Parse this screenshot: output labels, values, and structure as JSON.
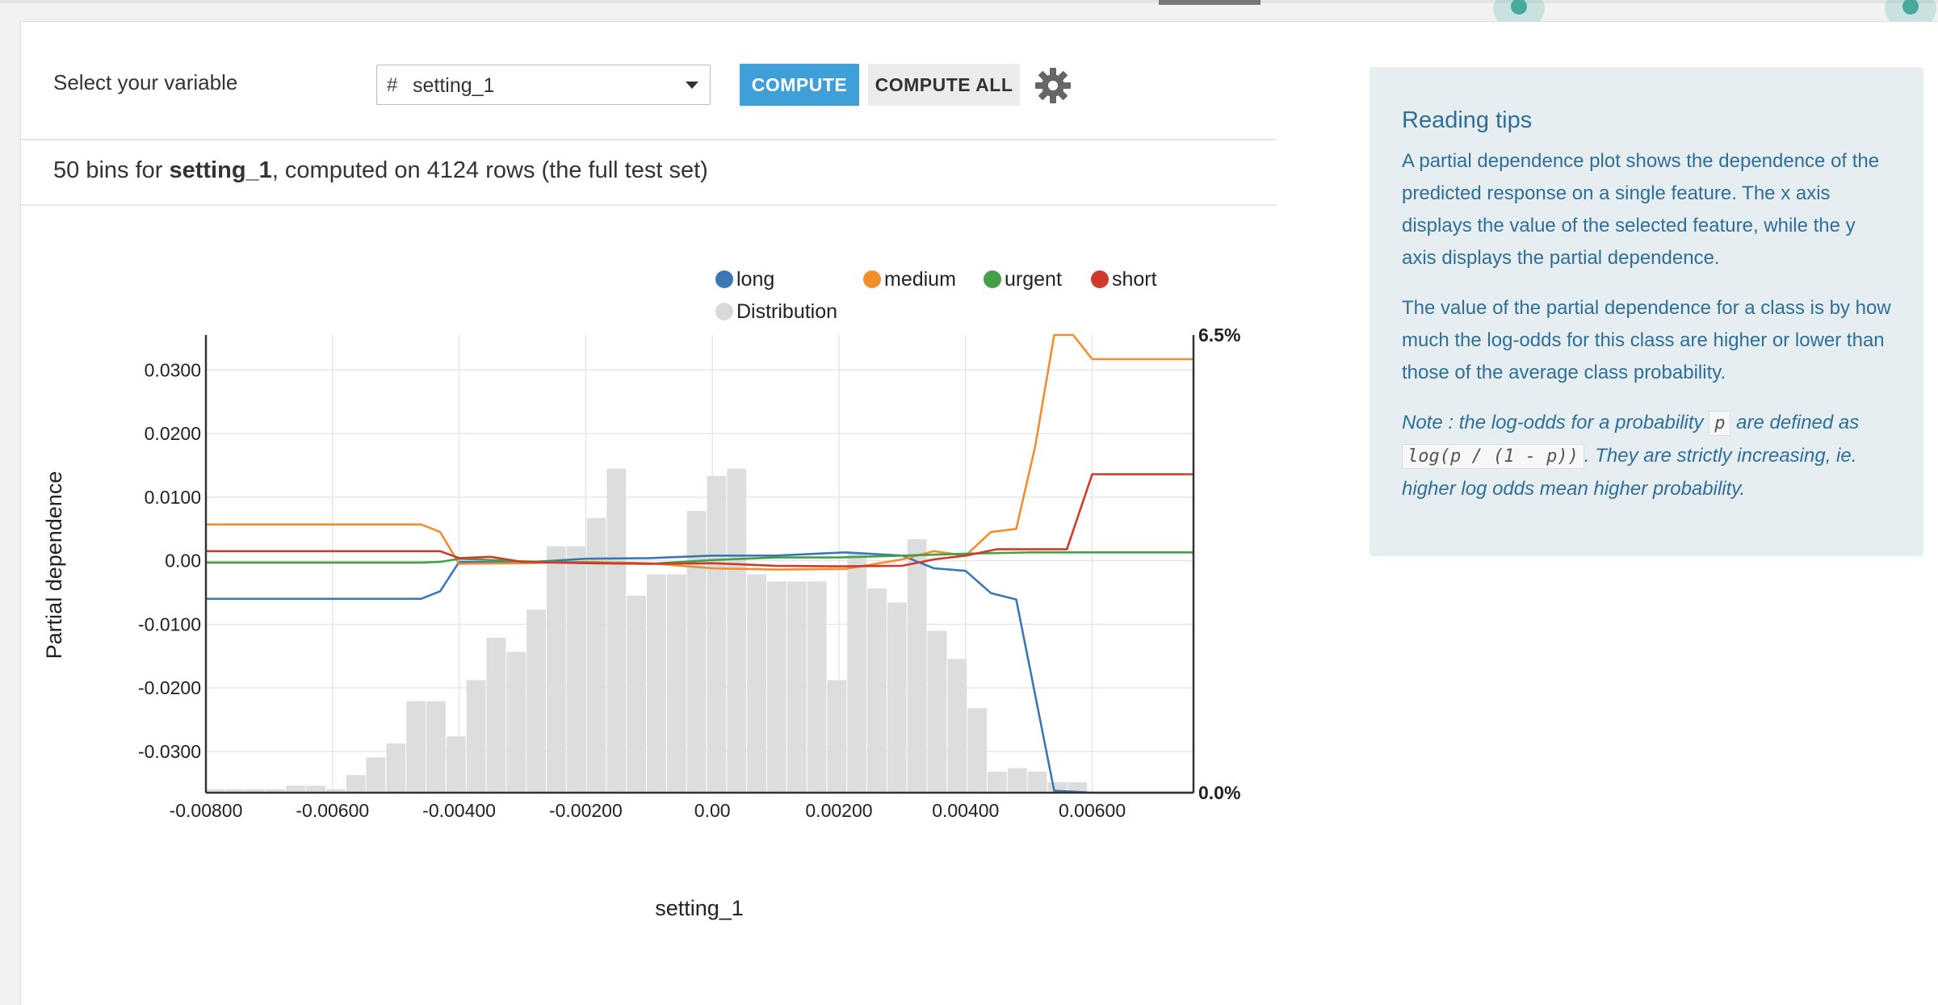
{
  "toolbar": {
    "variable_label": "Select your variable",
    "variable_type_symbol": "#",
    "selected_variable": "setting_1",
    "compute_label": "COMPUTE",
    "compute_all_label": "COMPUTE ALL",
    "settings_icon": "gear-icon"
  },
  "summary": {
    "prefix": "50 bins for ",
    "variable": "setting_1",
    "suffix": ", computed on 4124 rows (the full test set)"
  },
  "tips": {
    "title": "Reading tips",
    "p1": "A partial dependence plot shows the dependence of the predicted response on a single feature. The x axis displays the value of the selected feature, while the y axis displays the partial dependence.",
    "p2": "The value of the partial dependence for a class is by how much the log-odds for this class are higher or lower than those of the average class probability.",
    "note_a": "Note : the log-odds for a probability ",
    "note_var": "p",
    "note_b": " are defined as ",
    "note_formula": "log(p / (1 - p))",
    "note_c": ". They are strictly increasing, ie. higher log odds mean higher probability."
  },
  "colors": {
    "accent": "#3f9fd9",
    "tips_text": "#2f6f97",
    "tips_bg": "#e6eef2"
  },
  "chart_data": {
    "type": "line",
    "xlabel": "setting_1",
    "ylabel": "Partial dependence",
    "xlim": [
      -0.008,
      0.0076
    ],
    "ylim": [
      -0.0365,
      0.0355
    ],
    "x_ticks": [
      "-0.00800",
      "-0.00600",
      "-0.00400",
      "-0.00200",
      "0.00",
      "0.00200",
      "0.00400",
      "0.00600"
    ],
    "x_tick_values": [
      -0.008,
      -0.006,
      -0.004,
      -0.002,
      0.0,
      0.002,
      0.004,
      0.006
    ],
    "y_ticks": [
      "0.0300",
      "0.0200",
      "0.0100",
      "0.00",
      "-0.0100",
      "-0.0200",
      "-0.0300"
    ],
    "y_tick_values": [
      0.03,
      0.02,
      0.01,
      0.0,
      -0.01,
      -0.02,
      -0.03
    ],
    "right_axis_ticks": [
      "6.5%",
      "0.0%"
    ],
    "right_axis_range": [
      0,
      6.5
    ],
    "grid": true,
    "legend_position": "top",
    "legend": [
      {
        "name": "long",
        "color": "#3a78b5"
      },
      {
        "name": "medium",
        "color": "#f28e2b"
      },
      {
        "name": "urgent",
        "color": "#43a047"
      },
      {
        "name": "short",
        "color": "#d1392b"
      },
      {
        "name": "Distribution",
        "color": "#d9d9d9"
      }
    ],
    "series": [
      {
        "name": "long",
        "color": "#3a78b5",
        "x": [
          -0.008,
          -0.0046,
          -0.0043,
          -0.004,
          -0.003,
          -0.002,
          -0.001,
          0.0,
          0.001,
          0.0021,
          0.003,
          0.0035,
          0.004,
          0.0044,
          0.0048,
          0.0054,
          0.006,
          0.0076
        ],
        "y": [
          -0.006,
          -0.006,
          -0.0048,
          -0.0002,
          -0.0003,
          0.0003,
          0.0004,
          0.0008,
          0.0008,
          0.0013,
          0.0008,
          -0.0012,
          -0.0016,
          -0.0051,
          -0.0061,
          -0.0362,
          -0.0365,
          -0.0365
        ]
      },
      {
        "name": "medium",
        "color": "#f28e2b",
        "x": [
          -0.008,
          -0.0046,
          -0.0043,
          -0.004,
          -0.003,
          -0.002,
          -0.001,
          0.0,
          0.001,
          0.0021,
          0.003,
          0.0035,
          0.004,
          0.0044,
          0.0048,
          0.0051,
          0.0054,
          0.0057,
          0.006,
          0.0076
        ],
        "y": [
          0.0057,
          0.0057,
          0.0045,
          -0.0005,
          -0.0004,
          -0.0002,
          -0.0004,
          -0.0012,
          -0.0014,
          -0.0013,
          0.0002,
          0.0015,
          0.0008,
          0.0045,
          0.005,
          0.018,
          0.0355,
          0.0355,
          0.0317,
          0.0317
        ]
      },
      {
        "name": "urgent",
        "color": "#43a047",
        "x": [
          -0.008,
          -0.0046,
          -0.0043,
          -0.004,
          -0.003,
          -0.002,
          -0.001,
          0.0,
          0.001,
          0.002,
          0.003,
          0.004,
          0.005,
          0.006,
          0.0076
        ],
        "y": [
          -0.0003,
          -0.0003,
          -0.0002,
          0.0003,
          -0.0001,
          -0.0003,
          -0.0005,
          0.0001,
          0.0005,
          0.0005,
          0.0008,
          0.0011,
          0.0013,
          0.0013,
          0.0013
        ]
      },
      {
        "name": "short",
        "color": "#d1392b",
        "x": [
          -0.008,
          -0.0046,
          -0.0043,
          -0.004,
          -0.0035,
          -0.003,
          -0.002,
          -0.001,
          0.0,
          0.001,
          0.002,
          0.003,
          0.0035,
          0.004,
          0.0045,
          0.0056,
          0.006,
          0.0076
        ],
        "y": [
          0.0015,
          0.0015,
          0.0015,
          0.0004,
          0.0006,
          -0.0002,
          -0.0004,
          -0.0005,
          -0.0004,
          -0.0008,
          -0.0009,
          -0.0008,
          0.0002,
          0.0008,
          0.0018,
          0.0018,
          0.0136,
          0.0136
        ]
      }
    ],
    "distribution": {
      "name": "Distribution",
      "bin_start": -0.008,
      "bin_width": 0.0003166,
      "values_pct": [
        0.05,
        0.05,
        0.05,
        0.05,
        0.1,
        0.1,
        0.05,
        0.25,
        0.5,
        0.7,
        1.3,
        1.3,
        0.8,
        1.6,
        2.2,
        2.0,
        2.6,
        3.5,
        3.5,
        3.9,
        4.6,
        2.8,
        3.1,
        3.1,
        4.0,
        4.5,
        4.6,
        3.1,
        3.0,
        3.0,
        3.0,
        1.6,
        3.4,
        2.9,
        2.7,
        3.6,
        2.3,
        1.9,
        1.2,
        0.3,
        0.35,
        0.3,
        0.15,
        0.15,
        0.0,
        0.0,
        0.0,
        0.0,
        0.0,
        0.0
      ]
    }
  }
}
